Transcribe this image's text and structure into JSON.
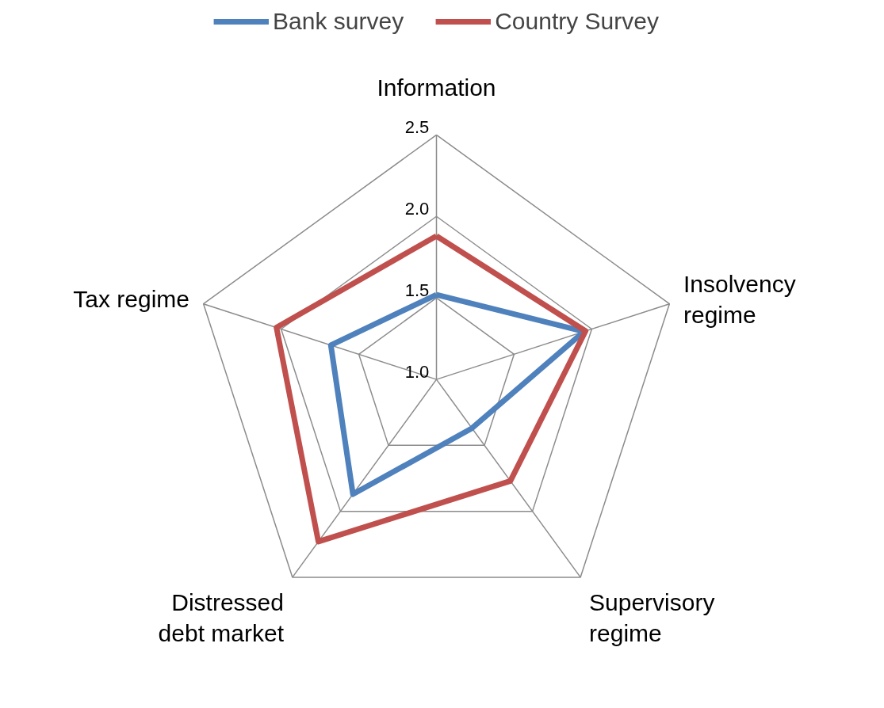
{
  "chart_data": {
    "type": "radar",
    "categories": [
      "Information",
      "Insolvency regime",
      "Supervisory regime",
      "Distressed debt market",
      "Tax regime"
    ],
    "series": [
      {
        "name": "Bank survey",
        "color": "#4f81bd",
        "values": [
          1.52,
          1.95,
          1.37,
          1.87,
          1.68
        ]
      },
      {
        "name": "Country Survey",
        "color": "#c0504d",
        "values": [
          1.88,
          1.96,
          1.77,
          2.23,
          2.03
        ]
      }
    ],
    "ylim": [
      1.0,
      2.5
    ],
    "yticks": [
      {
        "value": 1.0,
        "label": "1.0"
      },
      {
        "value": 1.5,
        "label": "1.5"
      },
      {
        "value": 2.0,
        "label": "2.0"
      },
      {
        "value": 2.5,
        "label": "2.5"
      }
    ],
    "grid": true,
    "legend": "top",
    "marker": "none",
    "line_style": "solid"
  }
}
